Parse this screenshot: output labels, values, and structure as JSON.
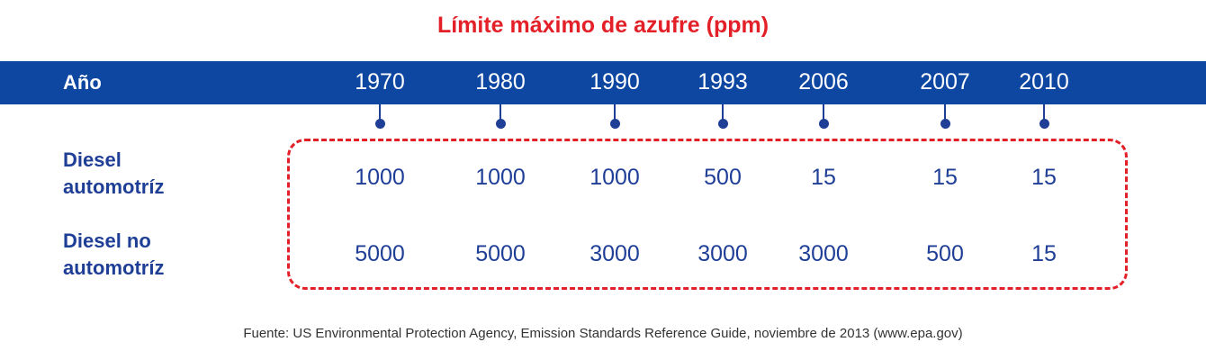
{
  "colors": {
    "title": "#e32028",
    "band": "#0d47a1",
    "text_blue": "#1f3f96",
    "dash_red": "#e32028",
    "marker": "#1f3f96"
  },
  "chart_data": {
    "type": "table",
    "title": "Límite máximo de azufre (ppm)",
    "header_label": "Año",
    "x": [
      "1970",
      "1980",
      "1990",
      "1993",
      "2006",
      "2007",
      "2010"
    ],
    "series": [
      {
        "name": "Diesel automotríz",
        "values": [
          1000,
          1000,
          1000,
          500,
          15,
          15,
          15
        ]
      },
      {
        "name": "Diesel no automotríz",
        "values": [
          5000,
          5000,
          3000,
          3000,
          3000,
          500,
          15
        ]
      }
    ]
  },
  "source": "Fuente: US Environmental Protection Agency, Emission Standards Reference Guide, noviembre de 2013 (www.epa.gov)"
}
